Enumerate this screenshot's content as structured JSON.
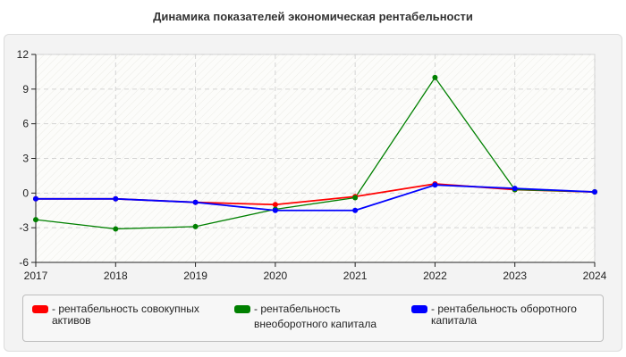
{
  "chart_data": {
    "type": "line",
    "title": "Динамика показателей экономическая рентабельности",
    "x": [
      "2017",
      "2018",
      "2019",
      "2020",
      "2021",
      "2022",
      "2023",
      "2024"
    ],
    "y_ticks": [
      "12",
      "9",
      "6",
      "3",
      "0",
      "-3",
      "-6"
    ],
    "ylim": [
      -6,
      12
    ],
    "grid": true,
    "legend_position": "bottom",
    "series": [
      {
        "name": "- рентабельность совокупных активов",
        "name_lines": [
          "- рентабельность совокупных",
          "активов"
        ],
        "color": "#ff0000",
        "values": [
          -0.5,
          -0.5,
          -0.8,
          -1.0,
          -0.3,
          0.8,
          0.3,
          0.1
        ]
      },
      {
        "name": "- рентабельность внеоборотного капитала",
        "name_lines": [
          "- рентабельность",
          "внеоборотного капитала"
        ],
        "color": "#008000",
        "values": [
          -2.3,
          -3.1,
          -2.9,
          -1.4,
          -0.4,
          10.0,
          0.3,
          0.1
        ]
      },
      {
        "name": "- рентабельность оборотного капитала",
        "name_lines": [
          "- рентабельность оборотного",
          "капитала"
        ],
        "color": "#0000ff",
        "values": [
          -0.5,
          -0.5,
          -0.8,
          -1.5,
          -1.5,
          0.7,
          0.4,
          0.1
        ]
      }
    ]
  }
}
